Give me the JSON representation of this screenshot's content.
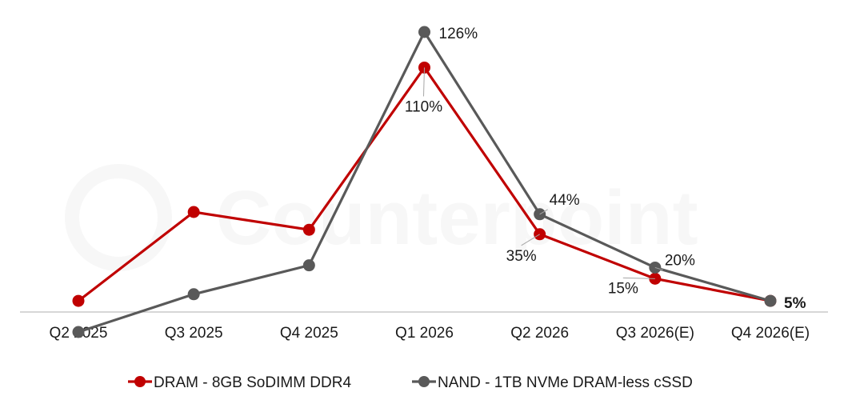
{
  "chart_data": {
    "type": "line",
    "categories": [
      "Q2 2025",
      "Q3 2025",
      "Q4 2025",
      "Q1 2026",
      "Q2 2026",
      "Q3 2026(E)",
      "Q4 2026(E)"
    ],
    "series": [
      {
        "name": "DRAM - 8GB SoDIMM DDR4",
        "color": "#c00000",
        "values": [
          5,
          45,
          37,
          110,
          35,
          15,
          5
        ],
        "labels": [
          "",
          "",
          "",
          "110%",
          "35%",
          "15%",
          "5%"
        ]
      },
      {
        "name": "NAND - 1TB NVMe DRAM-less cSSD",
        "color": "#595959",
        "values": [
          -9,
          8,
          21,
          126,
          44,
          20,
          5
        ],
        "labels": [
          "",
          "",
          "",
          "126%",
          "44%",
          "20%",
          "5%"
        ]
      }
    ],
    "title": "",
    "xlabel": "",
    "ylabel": "",
    "ylim": [
      -12,
      132
    ],
    "grid": false,
    "legend": "bottom",
    "watermark": "Counterpoint"
  }
}
